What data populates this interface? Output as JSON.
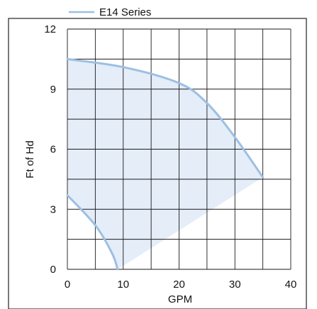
{
  "chart_data": {
    "type": "area",
    "title": "",
    "xlabel": "GPM",
    "ylabel": "Ft of Hd",
    "xlim": [
      0,
      40
    ],
    "ylim": [
      0,
      12
    ],
    "xticks": [
      "0",
      "10",
      "20",
      "30",
      "40"
    ],
    "yticks": [
      "0",
      "3",
      "6",
      "9",
      "12"
    ],
    "grid": true,
    "legend": "top-left",
    "series": [
      {
        "name": "E14 Series",
        "color": "#9dbfe3",
        "fill_color": "#e4edf8",
        "max_curve": [
          {
            "x": 0,
            "y": 10.5
          },
          {
            "x": 10,
            "y": 10.1
          },
          {
            "x": 20,
            "y": 9.3
          },
          {
            "x": 25,
            "y": 8.3
          },
          {
            "x": 30,
            "y": 6.6
          },
          {
            "x": 35,
            "y": 4.6
          }
        ],
        "min_curve": [
          {
            "x": 0,
            "y": 3.7
          },
          {
            "x": 5,
            "y": 2.2
          },
          {
            "x": 8,
            "y": 0.8
          },
          {
            "x": 9,
            "y": 0
          }
        ],
        "region_lower_edge": [
          {
            "x": 9,
            "y": 0
          },
          {
            "x": 35,
            "y": 4.6
          }
        ]
      }
    ]
  }
}
